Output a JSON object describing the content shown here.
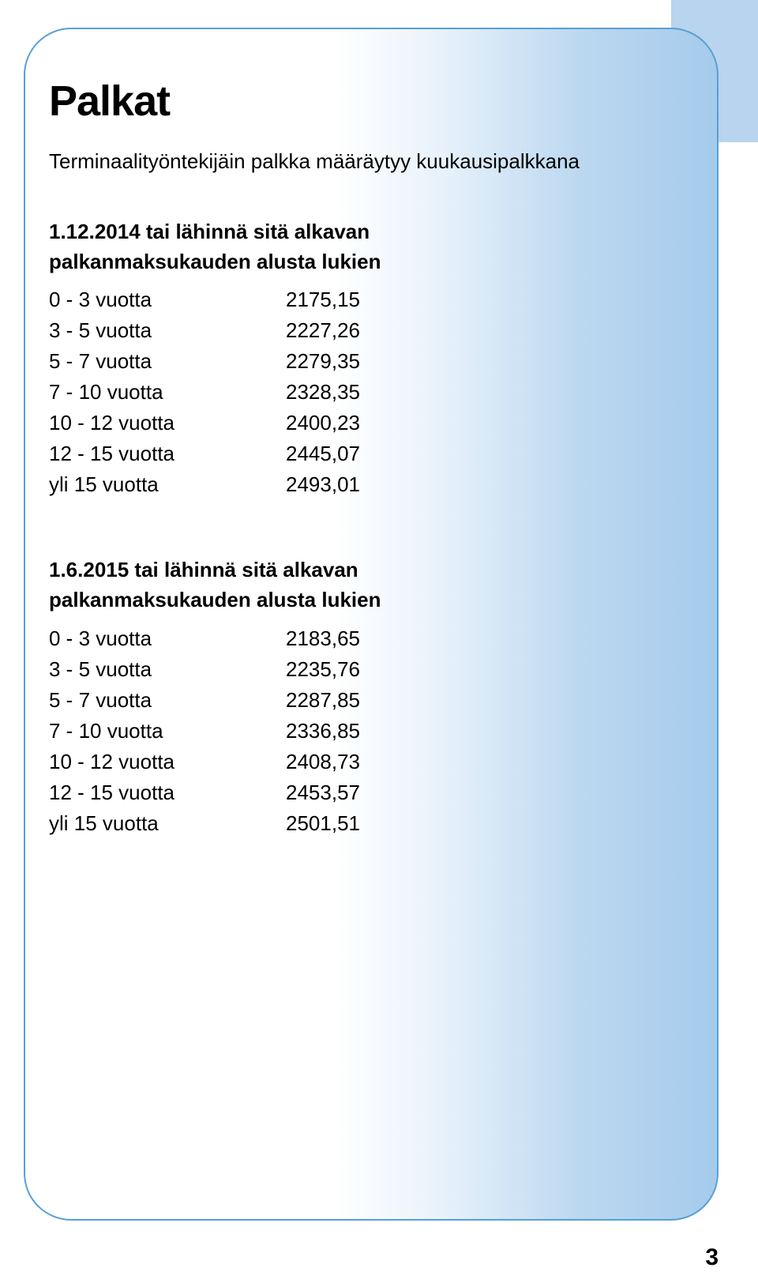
{
  "page": {
    "title": "Palkat",
    "intro": "Terminaalityöntekijäin palkka määräytyy kuukausipalkkana",
    "number": "3"
  },
  "tables": [
    {
      "heading_line1": "1.12.2014 tai lähinnä sitä alkavan",
      "heading_line2": "palkanmaksukauden alusta lukien",
      "rows": [
        {
          "label": "0 - 3 vuotta",
          "value": "2175,15"
        },
        {
          "label": "3 - 5 vuotta",
          "value": "2227,26"
        },
        {
          "label": "5 - 7 vuotta",
          "value": "2279,35"
        },
        {
          "label": "7 - 10 vuotta",
          "value": "2328,35"
        },
        {
          "label": "10 - 12 vuotta",
          "value": "2400,23"
        },
        {
          "label": "12 - 15 vuotta",
          "value": "2445,07"
        },
        {
          "label": "yli 15 vuotta",
          "value": "2493,01"
        }
      ]
    },
    {
      "heading_line1": "1.6.2015 tai lähinnä sitä alkavan",
      "heading_line2": "palkanmaksukauden alusta lukien",
      "rows": [
        {
          "label": "0 - 3 vuotta",
          "value": "2183,65"
        },
        {
          "label": "3 - 5 vuotta",
          "value": "2235,76"
        },
        {
          "label": "5 - 7 vuotta",
          "value": "2287,85"
        },
        {
          "label": "7 - 10 vuotta",
          "value": "2336,85"
        },
        {
          "label": "10 - 12 vuotta",
          "value": "2408,73"
        },
        {
          "label": "12 - 15 vuotta",
          "value": "2453,57"
        },
        {
          "label": "yli 15 vuotta",
          "value": "2501,51"
        }
      ]
    }
  ],
  "colors": {
    "card_border": "#5a9fd4",
    "side_strip": "#b8d4ef",
    "gradient_start": "#ffffff",
    "gradient_end": "#a5cbec",
    "text": "#000000"
  },
  "typography": {
    "title_fontsize": 54,
    "body_fontsize": 26,
    "page_number_fontsize": 30,
    "title_weight": 900,
    "heading_weight": 700
  }
}
